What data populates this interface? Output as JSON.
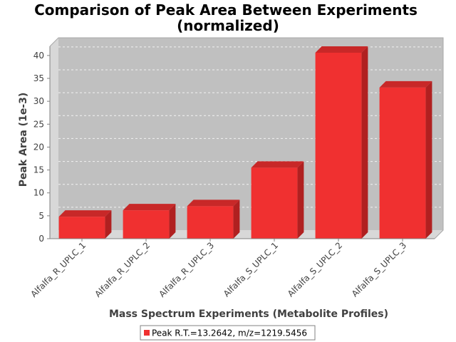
{
  "chart_data": {
    "type": "bar",
    "title_lines": [
      "Comparison of Peak Area Between Experiments",
      "(normalized)"
    ],
    "xlabel": "Mass Spectrum Experiments (Metabolite Profiles)",
    "ylabel": "Peak Area (1e-3)",
    "categories": [
      "Alfalfa_R_UPLC_1",
      "Alfalfa_R_UPLC_2",
      "Alfalfa_R_UPLC_3",
      "Alfalfa_S_UPLC_1",
      "Alfalfa_S_UPLC_2",
      "Alfalfa_S_UPLC_3"
    ],
    "series": [
      {
        "name": "Peak R.T.=13.2642, m/z=1219.5456",
        "values": [
          4.8,
          6.2,
          7.1,
          15.5,
          40.6,
          33.0
        ]
      }
    ],
    "ylim": [
      0,
      42
    ],
    "yticks": [
      0,
      5,
      10,
      15,
      20,
      25,
      30,
      35,
      40
    ],
    "grid": true,
    "legend_position": "bottom",
    "colors": {
      "bar_front": "#f03030",
      "bar_top": "#c82828",
      "bar_side": "#b02020",
      "plot_back": "#c0c0c0",
      "plot_wall": "#d8d8d8"
    }
  }
}
